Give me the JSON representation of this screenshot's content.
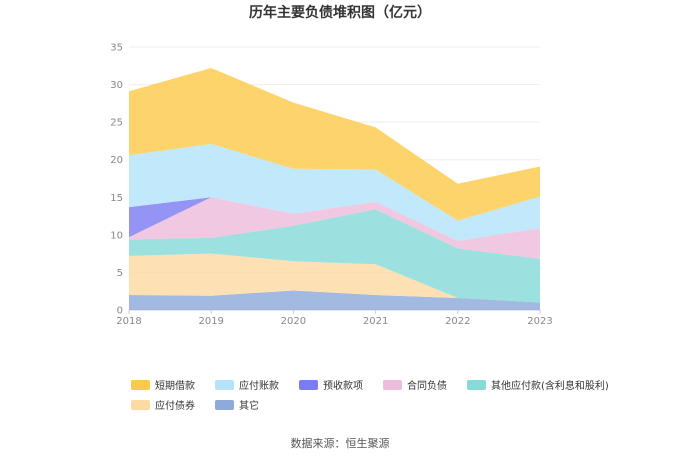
{
  "chart_data": {
    "type": "area",
    "title": "历年主要负债堆积图（亿元）",
    "source": "数据来源：恒生聚源",
    "x": [
      "2018",
      "2019",
      "2020",
      "2021",
      "2022",
      "2023"
    ],
    "ylim": [
      0,
      35
    ],
    "yticks": [
      "0",
      "5",
      "10",
      "15",
      "20",
      "25",
      "30",
      "35"
    ],
    "stacked": true,
    "grid": true,
    "legend_position": "bottom",
    "series": [
      {
        "name": "其它",
        "color": "#8eaadb",
        "values": [
          2.0,
          1.9,
          2.6,
          2.0,
          1.6,
          1.0
        ]
      },
      {
        "name": "应付债券",
        "color": "#fcdba3",
        "values": [
          5.2,
          5.6,
          3.9,
          4.1,
          0.0,
          0.0
        ]
      },
      {
        "name": "其他应付款(含利息和股利)",
        "color": "#86dbd9",
        "values": [
          2.2,
          2.1,
          4.7,
          7.3,
          6.6,
          5.8
        ]
      },
      {
        "name": "合同负债",
        "color": "#eebcdc",
        "values": [
          0.3,
          5.4,
          1.6,
          1.0,
          1.0,
          4.1
        ]
      },
      {
        "name": "预收款项",
        "color": "#7b7cf0",
        "values": [
          4.0,
          0.0,
          0.0,
          0.0,
          0.0,
          0.0
        ]
      },
      {
        "name": "应付账款",
        "color": "#b5e3fb",
        "values": [
          6.9,
          7.1,
          6.0,
          4.3,
          2.7,
          4.2
        ]
      },
      {
        "name": "短期借款",
        "color": "#fcca4a",
        "values": [
          8.5,
          10.1,
          8.8,
          5.6,
          4.9,
          4.0
        ]
      }
    ],
    "legend_order": [
      "短期借款",
      "应付账款",
      "预收款项",
      "合同负债",
      "其他应付款(含利息和股利)",
      "应付债券",
      "其它"
    ]
  }
}
